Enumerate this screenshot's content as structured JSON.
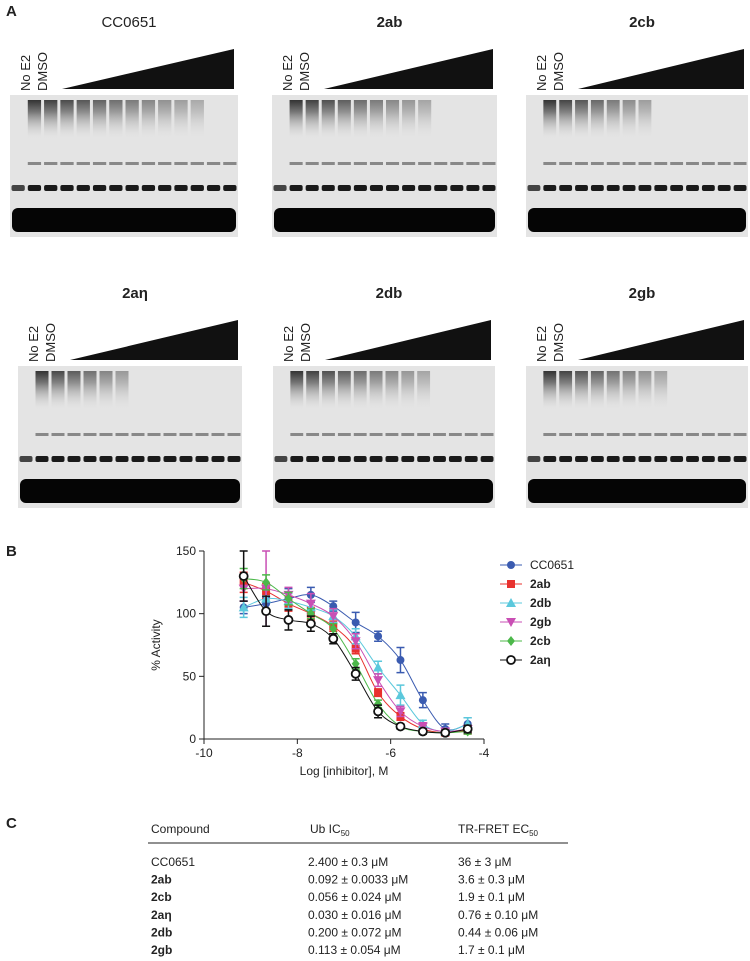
{
  "panel_a": {
    "label": "A",
    "gels": [
      {
        "title": "CC0651",
        "lanes": [
          "No E2",
          "DMSO"
        ]
      },
      {
        "title": "2ab",
        "lanes": [
          "No E2",
          "DMSO"
        ]
      },
      {
        "title": "2cb",
        "lanes": [
          "No E2",
          "DMSO"
        ]
      },
      {
        "title": "2aη",
        "lanes": [
          "No E2",
          "DMSO"
        ]
      },
      {
        "title": "2db",
        "lanes": [
          "No E2",
          "DMSO"
        ]
      },
      {
        "title": "2gb",
        "lanes": [
          "No E2",
          "DMSO"
        ]
      }
    ]
  },
  "panel_b": {
    "label": "B"
  },
  "chart_data": {
    "type": "scatter",
    "x_label": "Log [inhibitor], M",
    "y_label": "% Activity",
    "x": [
      -9.15,
      -8.67,
      -8.19,
      -7.71,
      -7.23,
      -6.75,
      -6.27,
      -5.79,
      -5.31,
      -4.83,
      -4.35
    ],
    "series": [
      {
        "name": "CC0651",
        "color": "#3a5bb0",
        "marker": "circle",
        "values": [
          105,
          108,
          112,
          115,
          106,
          93,
          82,
          63,
          31,
          8,
          12
        ],
        "errors": [
          5,
          5,
          8,
          6,
          4,
          8,
          4,
          10,
          6,
          4,
          5
        ]
      },
      {
        "name": "2ab",
        "color": "#e8312e",
        "marker": "square",
        "values": [
          125,
          118,
          108,
          100,
          90,
          72,
          37,
          18,
          8,
          5,
          7
        ],
        "errors": [
          8,
          6,
          6,
          5,
          4,
          4,
          3,
          3,
          2,
          2,
          3
        ]
      },
      {
        "name": "2db",
        "color": "#5bc8dc",
        "marker": "triangle-up",
        "values": [
          105,
          112,
          110,
          105,
          98,
          82,
          57,
          35,
          12,
          6,
          12
        ],
        "errors": [
          8,
          10,
          6,
          5,
          5,
          6,
          5,
          8,
          3,
          2,
          5
        ]
      },
      {
        "name": "2gb",
        "color": "#c94fb4",
        "marker": "triangle-down",
        "values": [
          120,
          120,
          115,
          108,
          98,
          78,
          47,
          22,
          10,
          6,
          8
        ],
        "errors": [
          10,
          30,
          6,
          8,
          6,
          6,
          5,
          4,
          3,
          2,
          3
        ]
      },
      {
        "name": "2cb",
        "color": "#4cb84a",
        "marker": "diamond",
        "values": [
          128,
          125,
          112,
          100,
          88,
          60,
          28,
          10,
          6,
          5,
          6
        ],
        "errors": [
          8,
          6,
          5,
          4,
          4,
          4,
          3,
          2,
          2,
          2,
          2
        ]
      },
      {
        "name": "2aη",
        "color": "#111111",
        "marker": "open-circle",
        "values": [
          130,
          102,
          95,
          92,
          80,
          52,
          22,
          10,
          6,
          5,
          8
        ],
        "errors": [
          20,
          12,
          8,
          6,
          4,
          5,
          5,
          2,
          2,
          2,
          3
        ]
      }
    ],
    "xlim": [
      -10,
      -4
    ],
    "xticks": [
      -10,
      -8,
      -6,
      -4
    ],
    "ylim": [
      0,
      150
    ],
    "yticks": [
      0,
      50,
      100,
      150
    ],
    "grid": false,
    "legend": "right"
  },
  "panel_c": {
    "label": "C",
    "table": {
      "header": [
        {
          "text": "Compound"
        },
        {
          "text": "Ub IC",
          "sub": "50"
        },
        {
          "text": "TR-FRET EC",
          "sub": "50"
        }
      ],
      "rows": [
        [
          "CC0651",
          "2.400 ± 0.3 μM",
          "36 ± 3 μM"
        ],
        [
          "2ab",
          "0.092 ± 0.0033 μM",
          "3.6 ± 0.3 μM"
        ],
        [
          "2cb",
          "0.056 ± 0.024 μM",
          "1.9 ± 0.1 μM"
        ],
        [
          "2aη",
          "0.030 ± 0.016 μM",
          "0.76 ± 0.10 μM"
        ],
        [
          "2db",
          "0.200 ± 0.072 μM",
          "0.44 ± 0.06 μM"
        ],
        [
          "2gb",
          "0.113 ± 0.054 μM",
          "1.7 ± 0.1 μM"
        ]
      ]
    }
  }
}
